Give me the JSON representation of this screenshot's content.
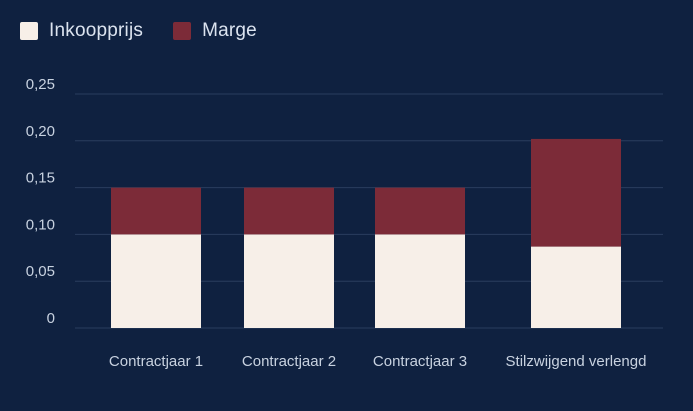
{
  "chart_data": {
    "type": "bar",
    "stacked": true,
    "categories": [
      "Contractjaar 1",
      "Contractjaar 2",
      "Contractjaar 3",
      "Stilzwijgend verlengd"
    ],
    "series": [
      {
        "name": "Inkoopprijs",
        "color": "#f7efe8",
        "values": [
          0.1,
          0.1,
          0.1,
          0.087
        ]
      },
      {
        "name": "Marge",
        "color": "#7c2b38",
        "values": [
          0.05,
          0.05,
          0.05,
          0.115
        ]
      }
    ],
    "y_ticks": [
      "0",
      "0,05",
      "0,10",
      "0,15",
      "0,20",
      "0,25"
    ],
    "ylim": [
      0,
      0.25
    ],
    "grid": true,
    "legend_position": "top-left",
    "title": "",
    "xlabel": "",
    "ylabel": ""
  },
  "colors": {
    "background": "#0f2140",
    "gridline": "#2a3d5e",
    "text": "#c8d2e0"
  }
}
